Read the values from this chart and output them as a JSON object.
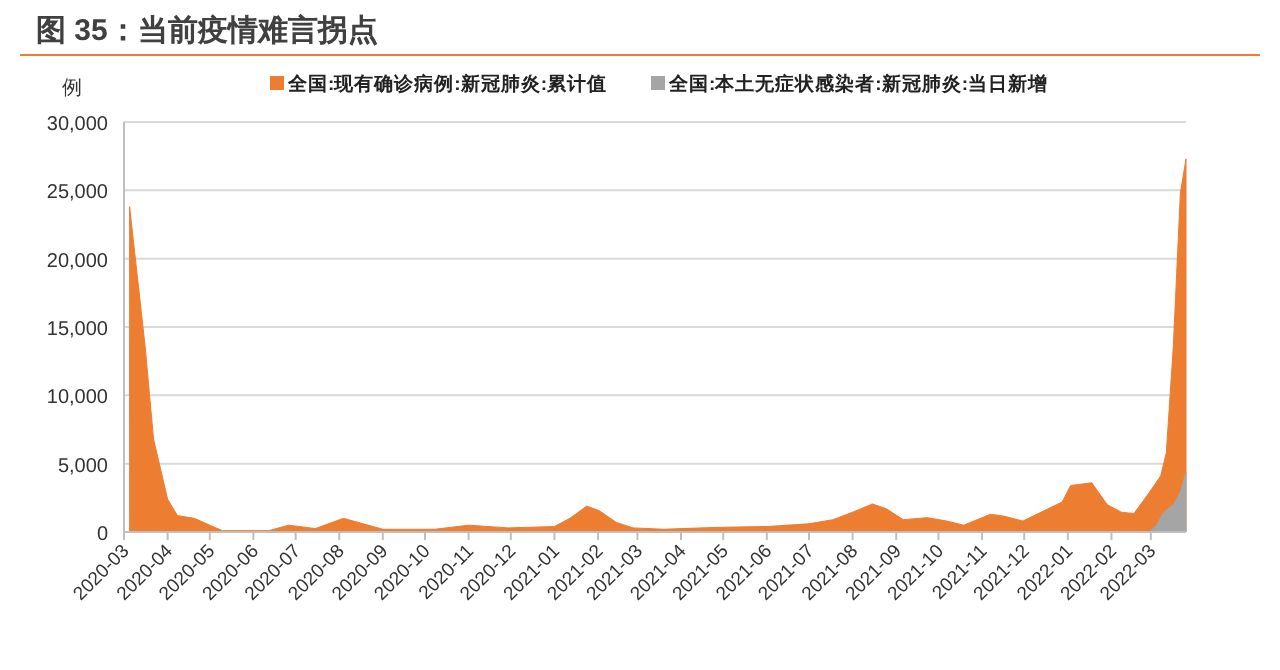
{
  "chart_data": {
    "type": "area",
    "title": "图 35：当前疫情难言拐点",
    "ylabel": "例",
    "legend": "top",
    "grid": "y",
    "xlim": [
      "2020-03-01",
      "2022-03-26"
    ],
    "xticks": [
      {
        "value": "2020-03-01",
        "label": "2020-03"
      },
      {
        "value": "2020-04-01",
        "label": "2020-04"
      },
      {
        "value": "2020-05-01",
        "label": "2020-05"
      },
      {
        "value": "2020-06-01",
        "label": "2020-06"
      },
      {
        "value": "2020-07-01",
        "label": "2020-07"
      },
      {
        "value": "2020-08-01",
        "label": "2020-08"
      },
      {
        "value": "2020-09-01",
        "label": "2020-09"
      },
      {
        "value": "2020-10-01",
        "label": "2020-10"
      },
      {
        "value": "2020-11-01",
        "label": "2020-11"
      },
      {
        "value": "2020-12-01",
        "label": "2020-12"
      },
      {
        "value": "2021-01-01",
        "label": "2021-01"
      },
      {
        "value": "2021-02-01",
        "label": "2021-02"
      },
      {
        "value": "2021-03-01",
        "label": "2021-03"
      },
      {
        "value": "2021-04-01",
        "label": "2021-04"
      },
      {
        "value": "2021-05-01",
        "label": "2021-05"
      },
      {
        "value": "2021-06-01",
        "label": "2021-06"
      },
      {
        "value": "2021-07-01",
        "label": "2021-07"
      },
      {
        "value": "2021-08-01",
        "label": "2021-08"
      },
      {
        "value": "2021-09-01",
        "label": "2021-09"
      },
      {
        "value": "2021-10-01",
        "label": "2021-10"
      },
      {
        "value": "2021-11-01",
        "label": "2021-11"
      },
      {
        "value": "2021-12-01",
        "label": "2021-12"
      },
      {
        "value": "2022-01-01",
        "label": "2022-01"
      },
      {
        "value": "2022-02-01",
        "label": "2022-02"
      },
      {
        "value": "2022-03-01",
        "label": "2022-03"
      }
    ],
    "ylim": [
      0,
      30000
    ],
    "yticks": [
      0,
      {
        "value": 5000,
        "label": "5,000"
      },
      {
        "value": 10000,
        "label": "10,000"
      },
      {
        "value": 15000,
        "label": "15,000"
      },
      {
        "value": 20000,
        "label": "20,000"
      },
      {
        "value": 25000,
        "label": "25,000"
      },
      {
        "value": 30000,
        "label": "30,000"
      }
    ],
    "series": [
      {
        "name": "全国:现有确诊病例:新冠肺炎:累计值",
        "color": "#ed7d31",
        "x": [
          "2020-03-05",
          "2020-03-16",
          "2020-03-22",
          "2020-04-01",
          "2020-04-08",
          "2020-04-20",
          "2020-05-01",
          "2020-05-10",
          "2020-06-12",
          "2020-06-26",
          "2020-07-15",
          "2020-08-04",
          "2020-08-18",
          "2020-09-01",
          "2020-10-08",
          "2020-11-01",
          "2020-11-29",
          "2021-01-01",
          "2021-01-12",
          "2021-01-24",
          "2021-02-02",
          "2021-02-14",
          "2021-02-26",
          "2021-03-20",
          "2021-04-01",
          "2021-05-01",
          "2021-06-01",
          "2021-07-01",
          "2021-07-18",
          "2021-08-01",
          "2021-08-15",
          "2021-08-25",
          "2021-09-06",
          "2021-09-23",
          "2021-10-07",
          "2021-10-19",
          "2021-11-07",
          "2021-11-17",
          "2021-11-30",
          "2021-12-18",
          "2021-12-28",
          "2022-01-03",
          "2022-01-18",
          "2022-01-29",
          "2022-02-08",
          "2022-02-17",
          "2022-02-28",
          "2022-03-08",
          "2022-03-12",
          "2022-03-17",
          "2022-03-22",
          "2022-03-26"
        ],
        "values": [
          23800,
          13600,
          6800,
          2400,
          1200,
          1000,
          500,
          100,
          100,
          500,
          250,
          1000,
          600,
          200,
          200,
          500,
          300,
          400,
          1000,
          1900,
          1550,
          700,
          300,
          200,
          250,
          350,
          400,
          600,
          900,
          1450,
          2050,
          1700,
          900,
          1050,
          800,
          500,
          1300,
          1150,
          800,
          1700,
          2200,
          3400,
          3600,
          2000,
          1450,
          1350,
          2900,
          4100,
          5800,
          13600,
          24800,
          27300
        ]
      },
      {
        "name": "全国:本土无症状感染者:新冠肺炎:当日新增",
        "color": "#a5a5a5",
        "x": [
          "2020-04-01",
          "2020-12-01",
          "2021-08-01",
          "2022-02-28",
          "2022-03-05",
          "2022-03-10",
          "2022-03-17",
          "2022-03-22",
          "2022-03-26"
        ],
        "values": [
          0,
          0,
          0,
          0,
          500,
          1450,
          2000,
          2900,
          4400
        ]
      }
    ]
  }
}
